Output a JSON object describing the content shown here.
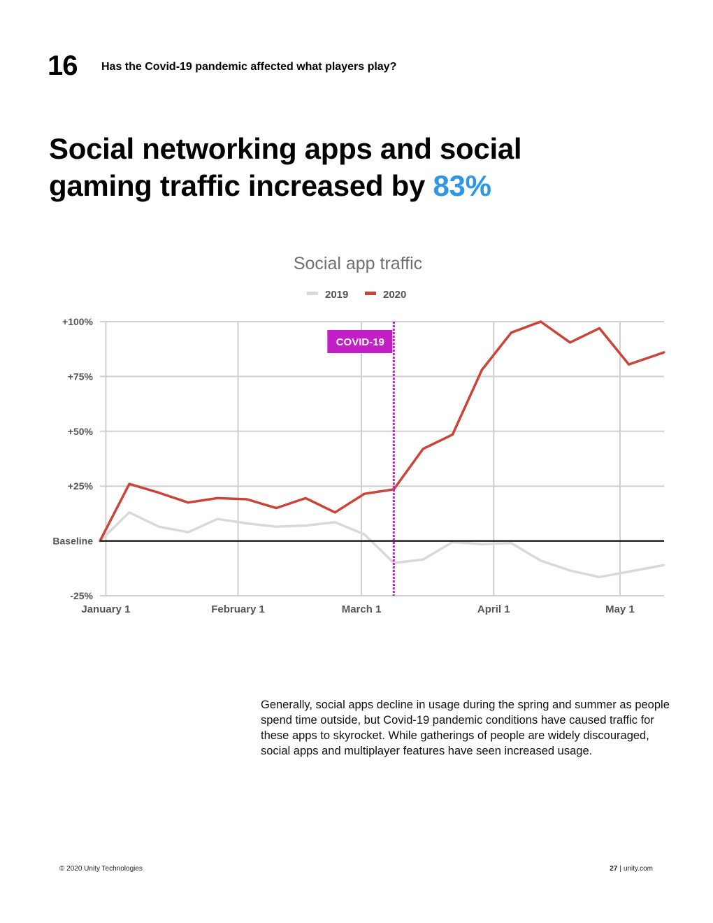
{
  "header": {
    "section_number": "16",
    "section_title": "Has the Covid-19 pandemic affected what players play?"
  },
  "headline": {
    "text_line1": "Social networking apps and social",
    "text_line2": "gaming traffic increased by",
    "highlight": "83%"
  },
  "colors": {
    "series_2019": "#d9d9d9",
    "series_2020": "#cc4439",
    "covid_marker": "#c21fc7",
    "baseline": "#222222",
    "accent": "#2b97e6"
  },
  "chart_data": {
    "type": "line",
    "title": "Social app traffic",
    "ylabel": "",
    "xlabel": "",
    "ylim": [
      -25,
      100
    ],
    "y_ticks": [
      {
        "value": 100,
        "label": "+100%"
      },
      {
        "value": 75,
        "label": "+75%"
      },
      {
        "value": 50,
        "label": "+50%"
      },
      {
        "value": 25,
        "label": "+25%"
      },
      {
        "value": 0,
        "label": "Baseline"
      },
      {
        "value": -25,
        "label": "-25%"
      }
    ],
    "x_ticks": [
      {
        "week": 0.2,
        "label": "January 1"
      },
      {
        "week": 4.7,
        "label": "February 1"
      },
      {
        "week": 8.9,
        "label": "March 1"
      },
      {
        "week": 13.4,
        "label": "April 1"
      },
      {
        "week": 17.7,
        "label": "May 1"
      }
    ],
    "x_range": [
      0,
      19.2
    ],
    "annotation": {
      "label": "COVID-19",
      "week": 10.0
    },
    "legend": [
      "2019",
      "2020"
    ],
    "legend_position": "top-center",
    "grid": true,
    "series": [
      {
        "name": "2019",
        "x": [
          0,
          1,
          2,
          3,
          4,
          5,
          6,
          7,
          8,
          9,
          10,
          11,
          12,
          13,
          14,
          15,
          16,
          17,
          18,
          19.2
        ],
        "values": [
          0,
          13,
          6.5,
          4,
          10,
          8,
          6.5,
          7,
          8.5,
          3,
          -10,
          -8.5,
          -0.5,
          -1.5,
          -1,
          -9,
          -13.5,
          -16.5,
          -14,
          -11
        ]
      },
      {
        "name": "2020",
        "x": [
          0,
          1,
          2,
          3,
          4,
          5,
          6,
          7,
          8,
          9,
          10,
          11,
          12,
          13,
          14,
          15,
          16,
          17,
          18,
          19.2
        ],
        "values": [
          0,
          26,
          22,
          17.5,
          19.5,
          19,
          15,
          19.5,
          13,
          21.5,
          23.5,
          42,
          48.5,
          78,
          95,
          100,
          90.5,
          97,
          80.5,
          86
        ]
      }
    ]
  },
  "body": {
    "paragraph": "Generally, social apps decline in usage during the spring and summer as people spend time outside, but Covid-19 pandemic conditions have caused traffic for these apps to skyrocket. While gatherings of people are widely discouraged, social apps and multiplayer features have seen increased usage."
  },
  "footer": {
    "copyright": "© 2020 Unity Technologies",
    "page_number": "27",
    "separator": "|",
    "site": "unity.com"
  }
}
